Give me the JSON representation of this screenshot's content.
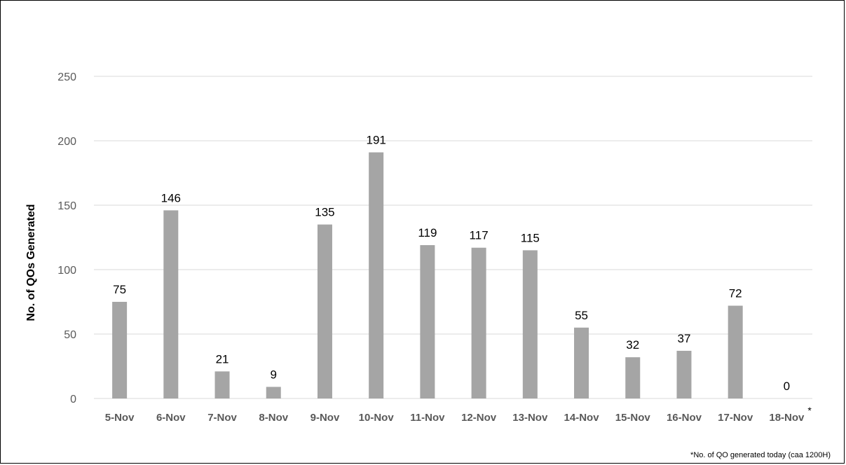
{
  "chart_data": {
    "type": "bar",
    "categories": [
      "5-Nov",
      "6-Nov",
      "7-Nov",
      "8-Nov",
      "9-Nov",
      "10-Nov",
      "11-Nov",
      "12-Nov",
      "13-Nov",
      "14-Nov",
      "15-Nov",
      "16-Nov",
      "17-Nov",
      "18-Nov"
    ],
    "values": [
      75,
      146,
      21,
      9,
      135,
      191,
      119,
      117,
      115,
      55,
      32,
      37,
      72,
      0
    ],
    "data_labels": [
      "75",
      "146",
      "21",
      "9",
      "135",
      "191",
      "119",
      "117",
      "115",
      "55",
      "32",
      "37",
      "72",
      "0"
    ],
    "title": "",
    "xlabel": "",
    "ylabel": "No. of QOs Generated",
    "ylim": [
      0,
      250
    ],
    "yticks": [
      0,
      50,
      100,
      150,
      200,
      250
    ],
    "grid": true,
    "legend": "none",
    "bar_color": "#a5a5a5",
    "gridline_color": "#d9d9d9",
    "last_category_marker": "*",
    "footnote": "*No. of QO generated today (caa 1200H)"
  }
}
